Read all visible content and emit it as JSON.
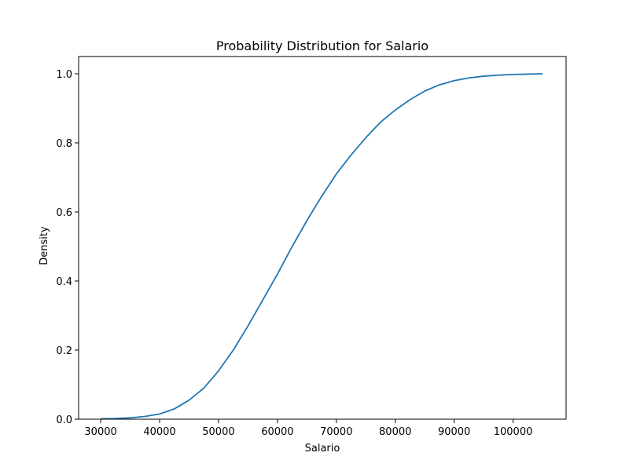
{
  "chart_data": {
    "type": "line",
    "title": "Probability Distribution for Salario",
    "xlabel": "Salario",
    "ylabel": "Density",
    "xlim": [
      26250,
      109000
    ],
    "ylim": [
      0,
      1.05
    ],
    "xticks": [
      30000,
      40000,
      50000,
      60000,
      70000,
      80000,
      90000,
      100000
    ],
    "xtick_labels": [
      "30000",
      "40000",
      "50000",
      "60000",
      "70000",
      "80000",
      "90000",
      "100000"
    ],
    "yticks": [
      0.0,
      0.2,
      0.4,
      0.6,
      0.8,
      1.0
    ],
    "ytick_labels": [
      "0.0",
      "0.2",
      "0.4",
      "0.6",
      "0.8",
      "1.0"
    ],
    "grid": false,
    "series": [
      {
        "color": "#1f77b4",
        "x": [
          30000,
          32500,
          35000,
          37500,
          40000,
          42500,
          45000,
          47500,
          50000,
          52500,
          55000,
          57500,
          60000,
          62500,
          65000,
          67500,
          70000,
          72500,
          75000,
          77500,
          80000,
          82500,
          85000,
          87500,
          90000,
          92500,
          95000,
          97500,
          100000,
          102500,
          105000
        ],
        "y": [
          0.001,
          0.002,
          0.004,
          0.008,
          0.015,
          0.03,
          0.055,
          0.09,
          0.14,
          0.2,
          0.27,
          0.345,
          0.42,
          0.5,
          0.575,
          0.645,
          0.71,
          0.765,
          0.815,
          0.86,
          0.895,
          0.925,
          0.95,
          0.968,
          0.98,
          0.988,
          0.993,
          0.996,
          0.998,
          0.999,
          1.0
        ]
      }
    ]
  }
}
